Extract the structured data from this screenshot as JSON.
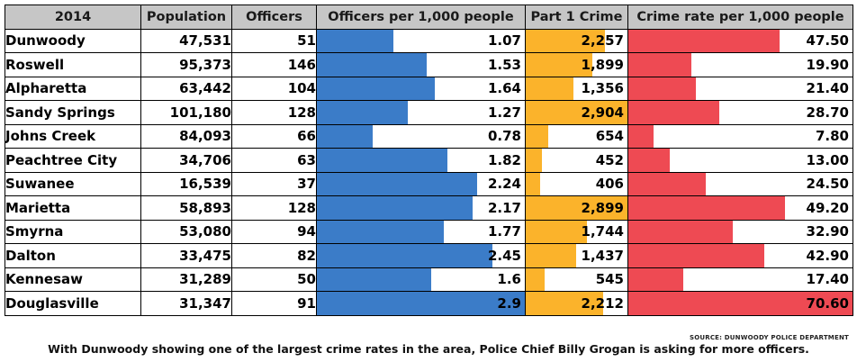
{
  "table": {
    "headers": [
      "2014",
      "Population",
      "Officers",
      "Officers per 1,000 people",
      "Part 1 Crime",
      "Crime rate per 1,000 people"
    ],
    "rows": [
      {
        "city": "Dunwoody",
        "population": "47,531",
        "officers": "51",
        "officers_per_1000": "1.07",
        "part1_crime": "2,257",
        "crime_rate": "47.50"
      },
      {
        "city": "Roswell",
        "population": "95,373",
        "officers": "146",
        "officers_per_1000": "1.53",
        "part1_crime": "1,899",
        "crime_rate": "19.90"
      },
      {
        "city": "Alpharetta",
        "population": "63,442",
        "officers": "104",
        "officers_per_1000": "1.64",
        "part1_crime": "1,356",
        "crime_rate": "21.40"
      },
      {
        "city": "Sandy Springs",
        "population": "101,180",
        "officers": "128",
        "officers_per_1000": "1.27",
        "part1_crime": "2,904",
        "crime_rate": "28.70"
      },
      {
        "city": "Johns Creek",
        "population": "84,093",
        "officers": "66",
        "officers_per_1000": "0.78",
        "part1_crime": "654",
        "crime_rate": "7.80"
      },
      {
        "city": "Peachtree City",
        "population": "34,706",
        "officers": "63",
        "officers_per_1000": "1.82",
        "part1_crime": "452",
        "crime_rate": "13.00"
      },
      {
        "city": "Suwanee",
        "population": "16,539",
        "officers": "37",
        "officers_per_1000": "2.24",
        "part1_crime": "406",
        "crime_rate": "24.50"
      },
      {
        "city": "Marietta",
        "population": "58,893",
        "officers": "128",
        "officers_per_1000": "2.17",
        "part1_crime": "2,899",
        "crime_rate": "49.20"
      },
      {
        "city": "Smyrna",
        "population": "53,080",
        "officers": "94",
        "officers_per_1000": "1.77",
        "part1_crime": "1,744",
        "crime_rate": "32.90"
      },
      {
        "city": "Dalton",
        "population": "33,475",
        "officers": "82",
        "officers_per_1000": "2.45",
        "part1_crime": "1,437",
        "crime_rate": "42.90"
      },
      {
        "city": "Kennesaw",
        "population": "31,289",
        "officers": "50",
        "officers_per_1000": "1.6",
        "part1_crime": "545",
        "crime_rate": "17.40"
      },
      {
        "city": "Douglasville",
        "population": "31,347",
        "officers": "91",
        "officers_per_1000": "2.9",
        "part1_crime": "2,212",
        "crime_rate": "70.60"
      }
    ]
  },
  "chart_data": {
    "type": "table",
    "title": "2014",
    "categories": [
      "Dunwoody",
      "Roswell",
      "Alpharetta",
      "Sandy Springs",
      "Johns Creek",
      "Peachtree City",
      "Suwanee",
      "Marietta",
      "Smyrna",
      "Dalton",
      "Kennesaw",
      "Douglasville"
    ],
    "series": [
      {
        "name": "Population",
        "values": [
          47531,
          95373,
          63442,
          101180,
          84093,
          34706,
          16539,
          58893,
          53080,
          33475,
          31289,
          31347
        ]
      },
      {
        "name": "Officers",
        "values": [
          51,
          146,
          104,
          128,
          66,
          63,
          37,
          128,
          94,
          82,
          50,
          91
        ]
      },
      {
        "name": "Officers per 1,000 people",
        "values": [
          1.07,
          1.53,
          1.64,
          1.27,
          0.78,
          1.82,
          2.24,
          2.17,
          1.77,
          2.45,
          1.6,
          2.9
        ],
        "bar_max": 2.9,
        "color": "#3b7cc8"
      },
      {
        "name": "Part 1 Crime",
        "values": [
          2257,
          1899,
          1356,
          2904,
          654,
          452,
          406,
          2899,
          1744,
          1437,
          545,
          2212
        ],
        "bar_max": 2904,
        "color": "#fbb32b"
      },
      {
        "name": "Crime rate per 1,000 people",
        "values": [
          47.5,
          19.9,
          21.4,
          28.7,
          7.8,
          13.0,
          24.5,
          49.2,
          32.9,
          42.9,
          17.4,
          70.6
        ],
        "bar_max": 70.6,
        "color": "#ee4a53"
      }
    ]
  },
  "source": "SOURCE: DUNWOODY POLICE DEPARTMENT",
  "caption": "With Dunwoody showing one of the largest crime rates in the area, Police Chief Billy Grogan is asking for more officers."
}
